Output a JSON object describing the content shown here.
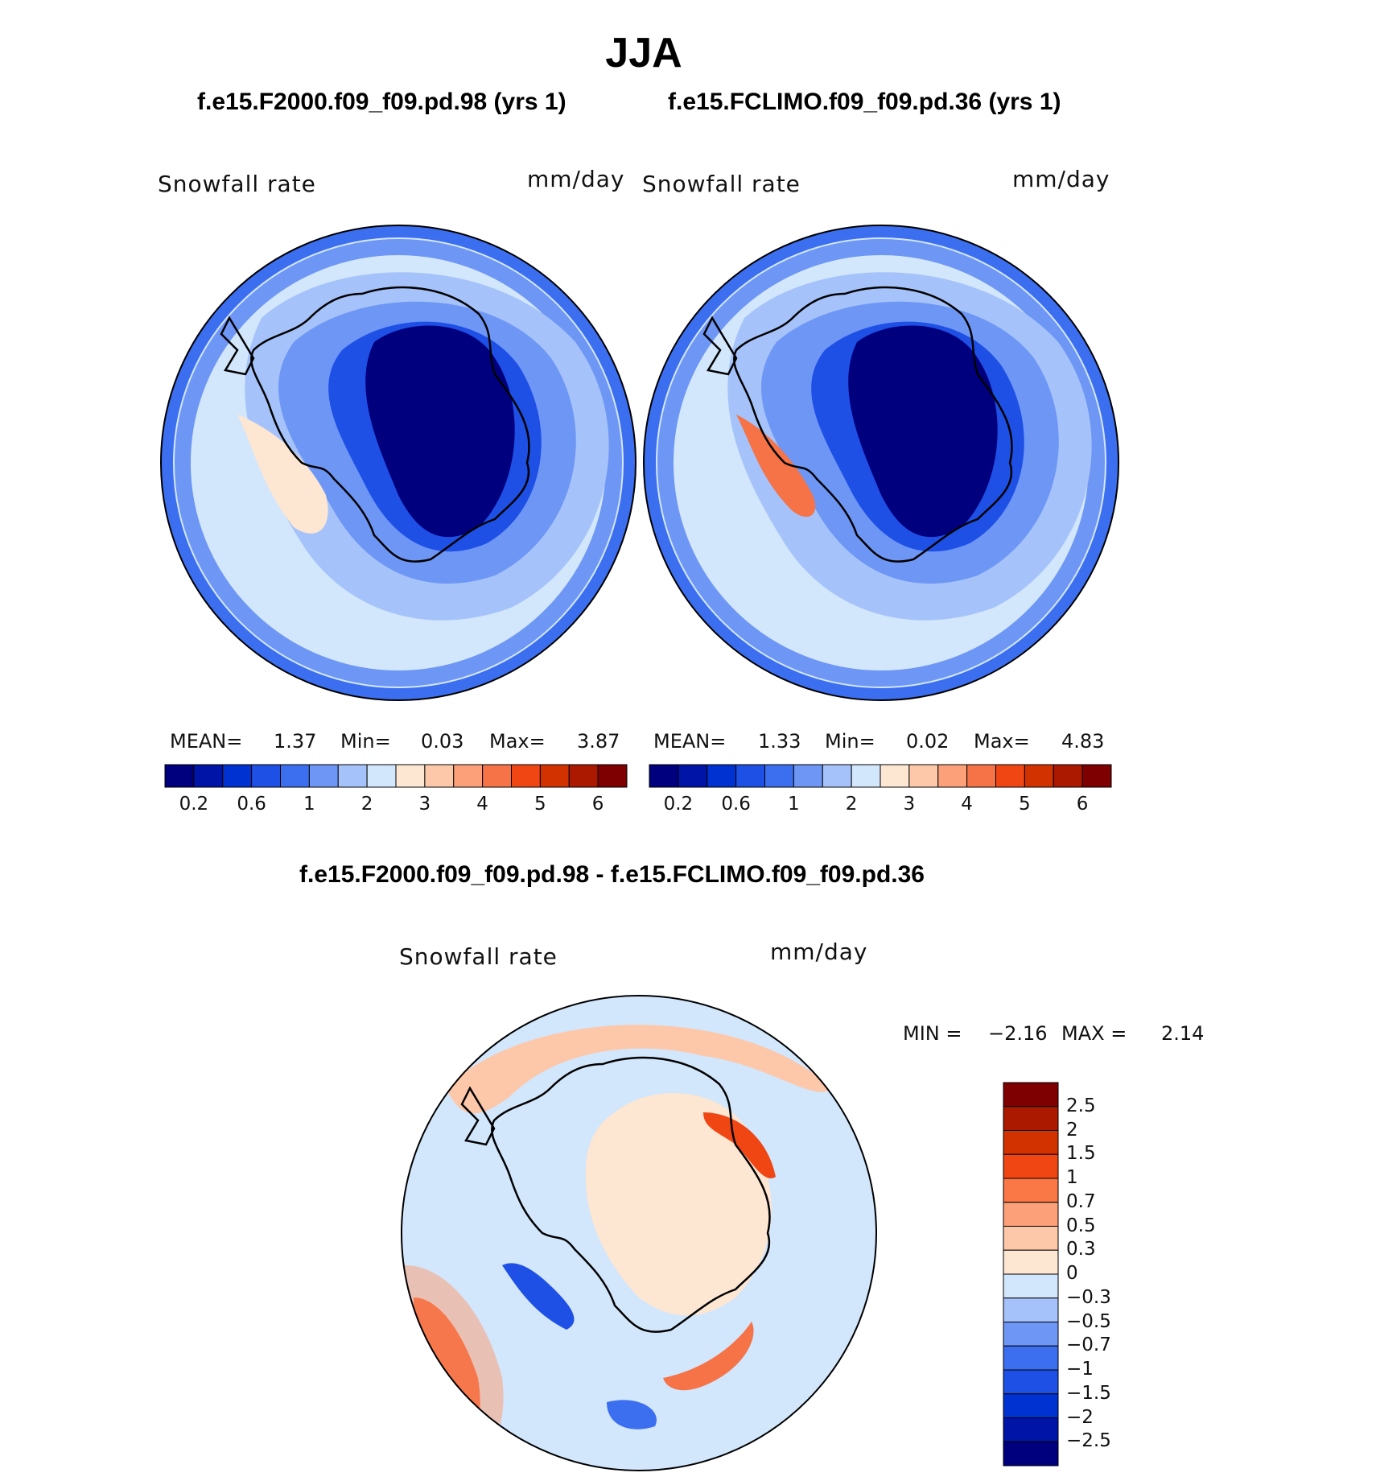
{
  "title": "JJA",
  "panels": [
    {
      "case_label": "f.e15.F2000.f09_f09.pd.98 (yrs 1)",
      "variable": "Snowfall rate",
      "units": "mm/day",
      "mean_label": "MEAN=",
      "mean": "1.37",
      "min_label": "Min=",
      "min": "0.03",
      "max_label": "Max=",
      "max": "3.87"
    },
    {
      "case_label": "f.e15.FCLIMO.f09_f09.pd.36 (yrs 1)",
      "variable": "Snowfall rate",
      "units": "mm/day",
      "mean_label": "MEAN=",
      "mean": "1.33",
      "min_label": "Min=",
      "min": "0.02",
      "max_label": "Max=",
      "max": "4.83"
    }
  ],
  "abs_colorbar": {
    "colors": [
      "#00007f",
      "#0014a8",
      "#0032d2",
      "#1e50e6",
      "#3c6ef0",
      "#6e96f5",
      "#a5c3fa",
      "#d2e6fc",
      "#fde6d2",
      "#fdc8aa",
      "#fba078",
      "#f57346",
      "#f04614",
      "#d23200",
      "#aa1900",
      "#7f0000"
    ],
    "tick_labels": [
      "0.2",
      "0.6",
      "1",
      "2",
      "3",
      "4",
      "5",
      "6"
    ]
  },
  "diff_panel": {
    "title": "f.e15.F2000.f09_f09.pd.98 - f.e15.FCLIMO.f09_f09.pd.36",
    "variable": "Snowfall rate",
    "units": "mm/day",
    "min_label": "MIN =",
    "min": "−2.16",
    "max_label": "MAX =",
    "max": "2.14"
  },
  "diff_colorbar": {
    "colors": [
      "#7f0000",
      "#aa1900",
      "#d23200",
      "#f04614",
      "#fa7846",
      "#fba078",
      "#fdc8aa",
      "#fde6d2",
      "#d2e6fc",
      "#a5c3fa",
      "#6e96f5",
      "#3c6ef0",
      "#1e50e6",
      "#0032d2",
      "#0014a8",
      "#00007f"
    ],
    "tick_labels": [
      "2.5",
      "2",
      "1.5",
      "1",
      "0.7",
      "0.5",
      "0.3",
      "0",
      "−0.3",
      "−0.5",
      "−0.7",
      "−1",
      "−1.5",
      "−2",
      "−2.5"
    ]
  }
}
